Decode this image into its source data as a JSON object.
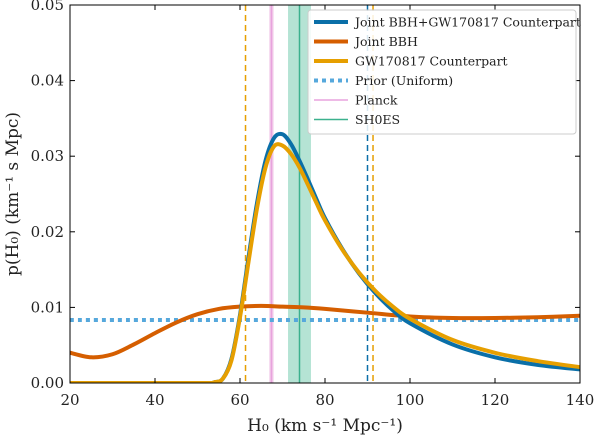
{
  "chart_data": {
    "type": "line",
    "title": "",
    "xlabel": "H₀ (km s⁻¹ Mpc⁻¹)",
    "ylabel": "p(H₀) (km⁻¹ s Mpc)",
    "xlim": [
      20,
      140
    ],
    "ylim": [
      0,
      0.05
    ],
    "xticks": [
      20,
      40,
      60,
      80,
      100,
      120,
      140
    ],
    "yticks": [
      0.0,
      0.01,
      0.02,
      0.03,
      0.04,
      0.05
    ],
    "xtick_labels": [
      "20",
      "40",
      "60",
      "80",
      "100",
      "120",
      "140"
    ],
    "ytick_labels": [
      "0.00",
      "0.01",
      "0.02",
      "0.03",
      "0.04",
      "0.05"
    ],
    "grid": false,
    "legend_position": "top-right",
    "series": [
      {
        "name": "Joint BBH+GW170817 Counterpart",
        "color": "#0a6fa8",
        "style": "solid",
        "x": [
          20,
          50,
          54,
          56,
          58,
          60,
          62,
          64,
          66,
          68,
          70,
          72,
          74,
          76,
          78,
          80,
          84,
          88,
          92,
          96,
          100,
          110,
          120,
          130,
          140
        ],
        "y": [
          0,
          0,
          0.0001,
          0.0006,
          0.0032,
          0.009,
          0.0166,
          0.0238,
          0.0294,
          0.0324,
          0.0329,
          0.0316,
          0.0294,
          0.0269,
          0.0243,
          0.0218,
          0.0178,
          0.0145,
          0.0118,
          0.0096,
          0.0079,
          0.0051,
          0.0034,
          0.0024,
          0.0018
        ]
      },
      {
        "name": "Joint BBH",
        "color": "#d55e00",
        "style": "solid",
        "x": [
          20,
          25,
          30,
          35,
          40,
          45,
          50,
          55,
          60,
          65,
          70,
          75,
          80,
          90,
          100,
          110,
          120,
          130,
          140
        ],
        "y": [
          0.004,
          0.0034,
          0.0038,
          0.0051,
          0.0066,
          0.008,
          0.0091,
          0.0098,
          0.0101,
          0.0102,
          0.0101,
          0.01,
          0.0098,
          0.0093,
          0.0088,
          0.0086,
          0.0086,
          0.0087,
          0.0089
        ]
      },
      {
        "name": "GW170817 Counterpart",
        "color": "#e69f00",
        "style": "solid",
        "x": [
          20,
          50,
          54,
          56,
          58,
          60,
          62,
          64,
          66,
          68,
          70,
          72,
          74,
          76,
          78,
          80,
          84,
          88,
          92,
          96,
          100,
          110,
          120,
          130,
          140
        ],
        "y": [
          0,
          0,
          0.0001,
          0.0006,
          0.003,
          0.0087,
          0.016,
          0.0231,
          0.0285,
          0.0313,
          0.0314,
          0.0303,
          0.0285,
          0.0262,
          0.0238,
          0.0215,
          0.0177,
          0.0146,
          0.0121,
          0.0101,
          0.0085,
          0.0057,
          0.004,
          0.0029,
          0.0021
        ]
      },
      {
        "name": "Prior (Uniform)",
        "color": "#56a8dc",
        "style": "dotted",
        "x": [
          20,
          140
        ],
        "y": [
          0.00833,
          0.00833
        ]
      }
    ],
    "vertical_lines": [
      {
        "name": "Planck",
        "x": 67.4,
        "color": "#e8a3dd",
        "style": "solid"
      },
      {
        "name": "SH0ES",
        "x": 74.0,
        "color": "#3cb18e",
        "style": "solid"
      }
    ],
    "shaded_bands": [
      {
        "label": "Planck",
        "x_range": [
          66.9,
          67.9
        ],
        "color": "#f2cdea"
      },
      {
        "label": "SH0ES",
        "x_range": [
          71.3,
          76.7
        ],
        "color": "#b5e3d4"
      }
    ],
    "interval_lines": [
      {
        "series": "Joint BBH+GW170817 Counterpart",
        "x": [
          90.0
        ],
        "color": "#0a6fa8",
        "style": "dashed"
      },
      {
        "series": "GW170817 Counterpart",
        "x": [
          61.3,
          91.3
        ],
        "color": "#e69f00",
        "style": "dashed"
      }
    ]
  }
}
